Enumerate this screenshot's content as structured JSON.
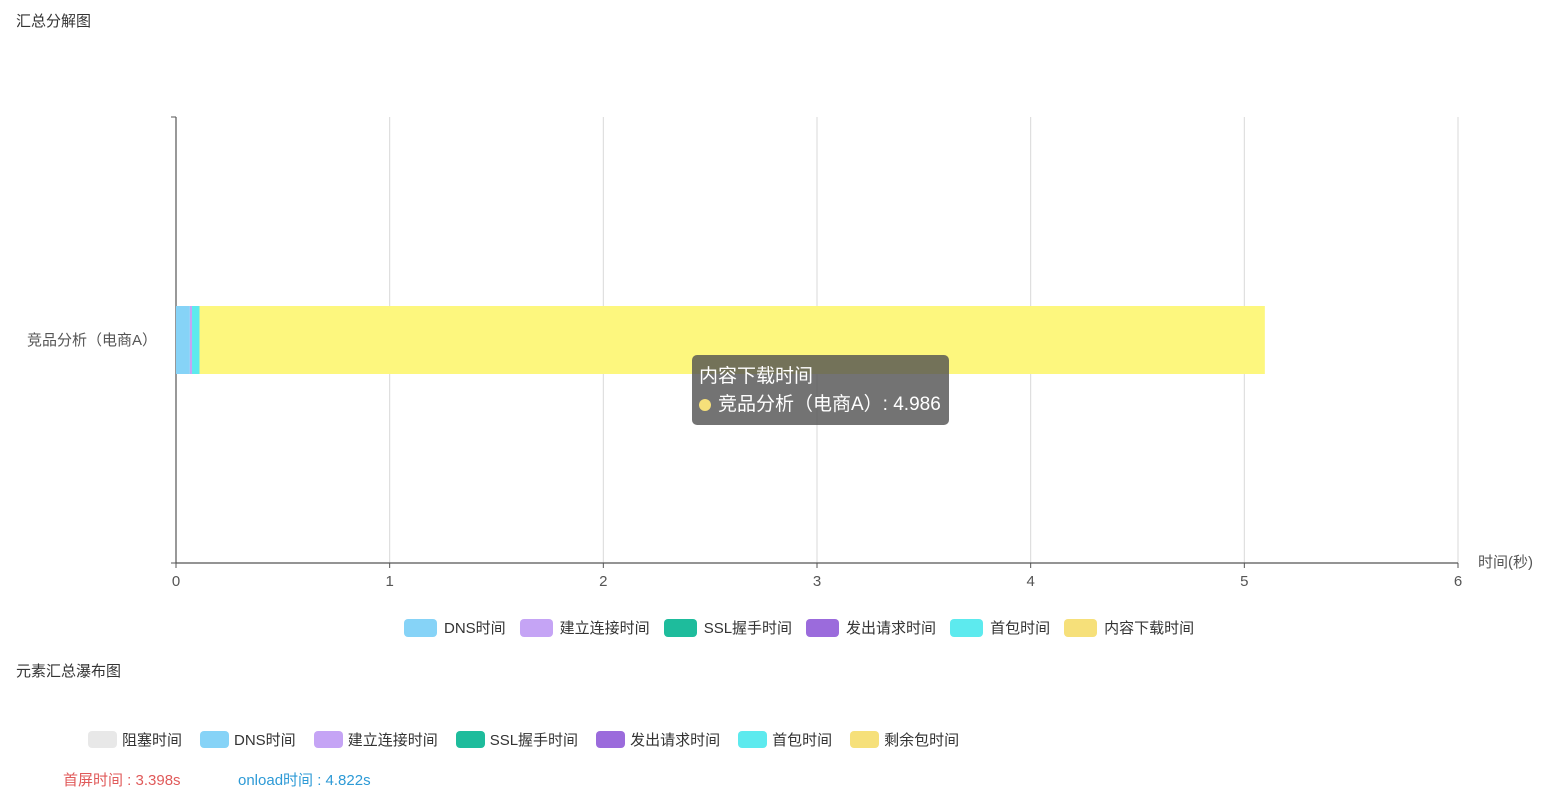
{
  "summary_title": "汇总分解图",
  "waterfall_title": "元素汇总瀑布图",
  "chart_data": {
    "type": "bar",
    "orientation": "horizontal",
    "stacked": true,
    "categories": [
      "竞品分析（电商A）"
    ],
    "x_label": "时间(秒)",
    "xlim": [
      0,
      6
    ],
    "x_ticks": [
      "0",
      "1",
      "2",
      "3",
      "4",
      "5",
      "6"
    ],
    "grid": true,
    "legend_position": "bottom",
    "series": [
      {
        "name": "DNS时间",
        "color": "#86d3f7",
        "values": [
          0.065
        ]
      },
      {
        "name": "建立连接时间",
        "color": "#c5a4f5",
        "values": [
          0.01
        ]
      },
      {
        "name": "SSL握手时间",
        "color": "#1ebc9c",
        "values": [
          0.0
        ]
      },
      {
        "name": "发出请求时间",
        "color": "#9b6bdc",
        "values": [
          0.0
        ]
      },
      {
        "name": "首包时间",
        "color": "#5deaee",
        "values": [
          0.035
        ]
      },
      {
        "name": "内容下载时间",
        "color": "#fdf77e",
        "legend_color": "#f6e07a",
        "values": [
          4.986
        ]
      }
    ]
  },
  "tooltip": {
    "title": "内容下载时间",
    "line": "竞品分析（电商A）: 4.986",
    "dot_color": "#f6e07a"
  },
  "waterfall_legend": [
    {
      "name": "阻塞时间",
      "color": "#e8e8e8"
    },
    {
      "name": "DNS时间",
      "color": "#86d3f7"
    },
    {
      "name": "建立连接时间",
      "color": "#c5a4f5"
    },
    {
      "name": "SSL握手时间",
      "color": "#1ebc9c"
    },
    {
      "name": "发出请求时间",
      "color": "#9b6bdc"
    },
    {
      "name": "首包时间",
      "color": "#5deaee"
    },
    {
      "name": "剩余包时间",
      "color": "#f6e07a"
    }
  ],
  "first_screen": {
    "text": "首屏时间 : 3.398s",
    "color": "#e05a5a"
  },
  "onload": {
    "text": "onload时间 : 4.822s",
    "color": "#2d9ad6"
  }
}
